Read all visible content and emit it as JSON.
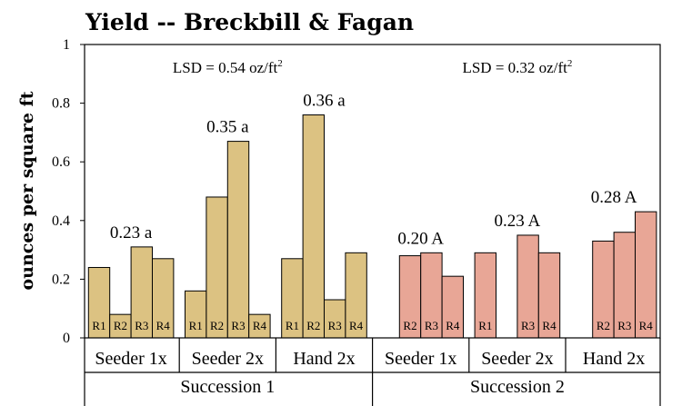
{
  "chart_data": {
    "type": "bar",
    "title": "Yield -- Breckbill & Fagan",
    "ylabel": "ounces per square ft",
    "ylim": [
      0,
      1
    ],
    "yticks": [
      "0",
      "0.2",
      "0.4",
      "0.6",
      "0.8",
      "1"
    ],
    "successions": [
      {
        "label": "Succession 1",
        "lsd_prefix": "LSD = 0.54 oz/ft",
        "lsd_sup": "2",
        "color": "#dcc282",
        "groups": [
          {
            "label": "Seeder 1x",
            "annotation": "0.23 a",
            "bars": [
              {
                "rep": "R1",
                "value": 0.24
              },
              {
                "rep": "R2",
                "value": 0.08
              },
              {
                "rep": "R3",
                "value": 0.31
              },
              {
                "rep": "R4",
                "value": 0.27
              }
            ]
          },
          {
            "label": "Seeder 2x",
            "annotation": "0.35 a",
            "bars": [
              {
                "rep": "R1",
                "value": 0.16
              },
              {
                "rep": "R2",
                "value": 0.48
              },
              {
                "rep": "R3",
                "value": 0.67
              },
              {
                "rep": "R4",
                "value": 0.08
              }
            ]
          },
          {
            "label": "Hand 2x",
            "annotation": "0.36 a",
            "bars": [
              {
                "rep": "R1",
                "value": 0.27
              },
              {
                "rep": "R2",
                "value": 0.76
              },
              {
                "rep": "R3",
                "value": 0.13
              },
              {
                "rep": "R4",
                "value": 0.29
              }
            ]
          }
        ]
      },
      {
        "label": "Succession 2",
        "lsd_prefix": "LSD = 0.32 oz/ft",
        "lsd_sup": "2",
        "color": "#e8a696",
        "groups": [
          {
            "label": "Seeder 1x",
            "annotation": "0.20 A",
            "bars": [
              {
                "rep": "R2",
                "value": 0.28
              },
              {
                "rep": "R3",
                "value": 0.29
              },
              {
                "rep": "R4",
                "value": 0.21
              }
            ]
          },
          {
            "label": "Seeder 2x",
            "annotation": "0.23 A",
            "bars": [
              {
                "rep": "R1",
                "value": 0.29
              },
              {
                "rep": "R3",
                "value": 0.35
              },
              {
                "rep": "R4",
                "value": 0.29
              }
            ]
          },
          {
            "label": "Hand 2x",
            "annotation": "0.28 A",
            "bars": [
              {
                "rep": "R2",
                "value": 0.33
              },
              {
                "rep": "R3",
                "value": 0.36
              },
              {
                "rep": "R4",
                "value": 0.43
              }
            ]
          }
        ]
      }
    ]
  }
}
